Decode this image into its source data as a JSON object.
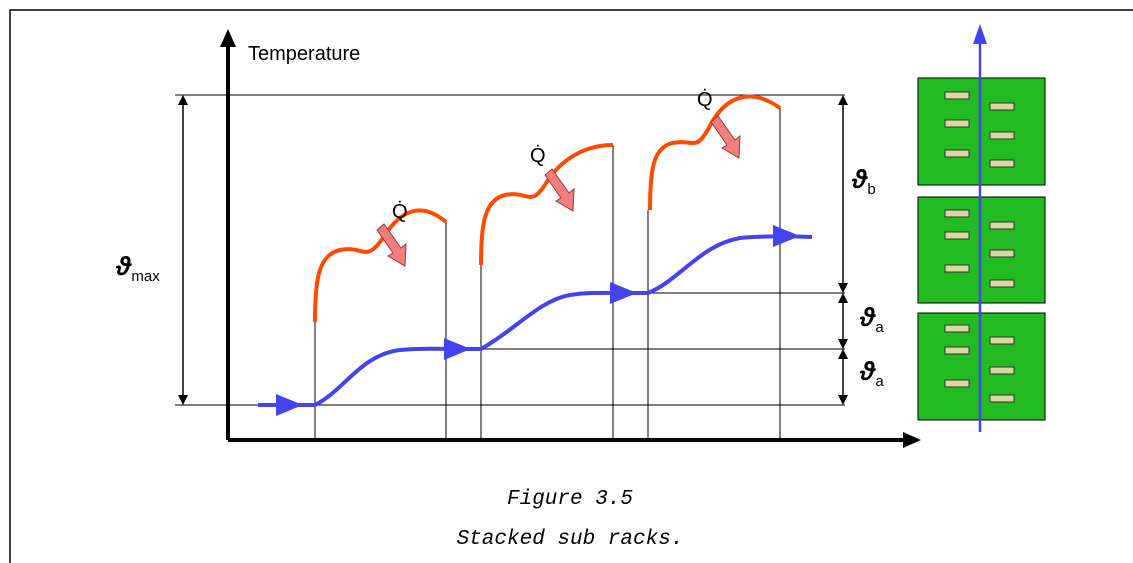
{
  "axis": {
    "y_label": "Temperature"
  },
  "labels": {
    "theta_max": {
      "symbol": "ϑ",
      "sub": "max"
    },
    "theta_b": {
      "symbol": "ϑ",
      "sub": "b"
    },
    "theta_a_upper": {
      "symbol": "ϑ",
      "sub": "a"
    },
    "theta_a_lower": {
      "symbol": "ϑ",
      "sub": "a"
    },
    "heat": [
      "Q̇",
      "Q̇",
      "Q̇"
    ]
  },
  "caption": {
    "figure": "Figure 3.5",
    "text": "Stacked sub racks."
  }
}
